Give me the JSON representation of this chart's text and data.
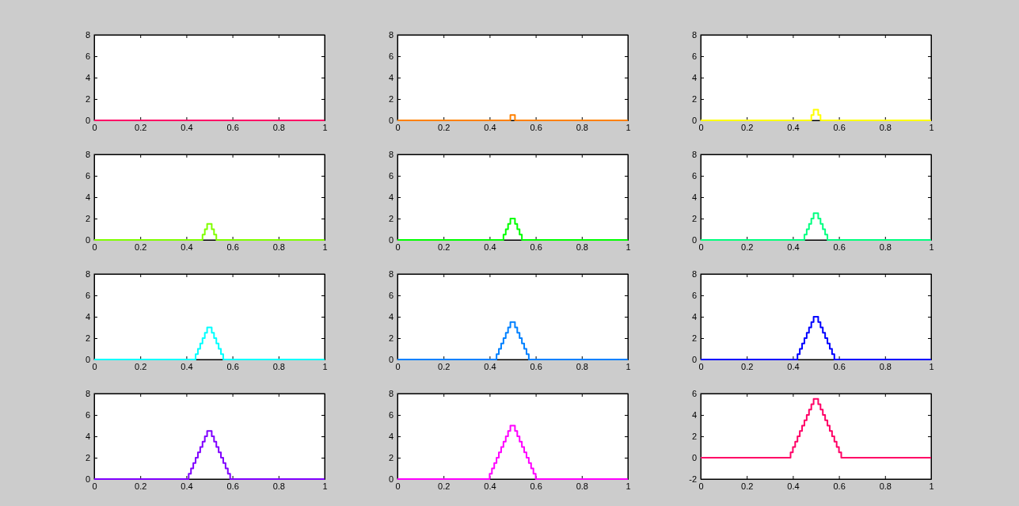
{
  "chart_data": [
    {
      "type": "step",
      "color": "#ff0066",
      "x": [
        0,
        1
      ],
      "values": [
        0,
        0
      ],
      "xlim": [
        0,
        1
      ],
      "ylim": [
        0,
        8
      ],
      "xticks": [
        0,
        0.2,
        0.4,
        0.6,
        0.8,
        1
      ],
      "yticks": [
        0,
        2,
        4,
        6,
        8
      ]
    },
    {
      "type": "step",
      "color": "#ff8000",
      "x": [
        0,
        0.49,
        0.51,
        1
      ],
      "values": [
        0,
        0.5,
        0,
        0
      ],
      "xlim": [
        0,
        1
      ],
      "ylim": [
        0,
        8
      ],
      "xticks": [
        0,
        0.2,
        0.4,
        0.6,
        0.8,
        1
      ],
      "yticks": [
        0,
        2,
        4,
        6,
        8
      ]
    },
    {
      "type": "step",
      "color": "#ffff00",
      "x": [
        0,
        0.48,
        0.49,
        0.51,
        0.52,
        1
      ],
      "values": [
        0,
        0.5,
        1,
        0.5,
        0,
        0
      ],
      "xlim": [
        0,
        1
      ],
      "ylim": [
        0,
        8
      ],
      "xticks": [
        0,
        0.2,
        0.4,
        0.6,
        0.8,
        1
      ],
      "yticks": [
        0,
        2,
        4,
        6,
        8
      ]
    },
    {
      "type": "step",
      "color": "#80ff00",
      "x": [
        0,
        0.47,
        0.48,
        0.49,
        0.51,
        0.52,
        0.53,
        1
      ],
      "values": [
        0,
        0.5,
        1,
        1.5,
        1,
        0.5,
        0,
        0
      ],
      "xlim": [
        0,
        1
      ],
      "ylim": [
        0,
        8
      ],
      "xticks": [
        0,
        0.2,
        0.4,
        0.6,
        0.8,
        1
      ],
      "yticks": [
        0,
        2,
        4,
        6,
        8
      ]
    },
    {
      "type": "step",
      "color": "#00ff00",
      "x": [
        0,
        0.46,
        0.47,
        0.48,
        0.49,
        0.51,
        0.52,
        0.53,
        0.54,
        1
      ],
      "values": [
        0,
        0.5,
        1,
        1.5,
        2,
        1.5,
        1,
        0.5,
        0,
        0
      ],
      "xlim": [
        0,
        1
      ],
      "ylim": [
        0,
        8
      ],
      "xticks": [
        0,
        0.2,
        0.4,
        0.6,
        0.8,
        1
      ],
      "yticks": [
        0,
        2,
        4,
        6,
        8
      ]
    },
    {
      "type": "step",
      "color": "#00ff80",
      "x": [
        0,
        0.45,
        0.46,
        0.47,
        0.48,
        0.49,
        0.51,
        0.52,
        0.53,
        0.54,
        0.55,
        1
      ],
      "values": [
        0,
        0.5,
        1,
        1.5,
        2,
        2.5,
        2,
        1.5,
        1,
        0.5,
        0,
        0
      ],
      "xlim": [
        0,
        1
      ],
      "ylim": [
        0,
        8
      ],
      "xticks": [
        0,
        0.2,
        0.4,
        0.6,
        0.8,
        1
      ],
      "yticks": [
        0,
        2,
        4,
        6,
        8
      ]
    },
    {
      "type": "step",
      "color": "#00ffff",
      "x": [
        0,
        0.44,
        0.45,
        0.46,
        0.47,
        0.48,
        0.49,
        0.51,
        0.52,
        0.53,
        0.54,
        0.55,
        0.56,
        1
      ],
      "values": [
        0,
        0.5,
        1,
        1.5,
        2,
        2.5,
        3,
        2.5,
        2,
        1.5,
        1,
        0.5,
        0,
        0
      ],
      "xlim": [
        0,
        1
      ],
      "ylim": [
        0,
        8
      ],
      "xticks": [
        0,
        0.2,
        0.4,
        0.6,
        0.8,
        1
      ],
      "yticks": [
        0,
        2,
        4,
        6,
        8
      ]
    },
    {
      "type": "step",
      "color": "#0080ff",
      "x": [
        0,
        0.43,
        0.44,
        0.45,
        0.46,
        0.47,
        0.48,
        0.49,
        0.51,
        0.52,
        0.53,
        0.54,
        0.55,
        0.56,
        0.57,
        1
      ],
      "values": [
        0,
        0.5,
        1,
        1.5,
        2,
        2.5,
        3,
        3.5,
        3,
        2.5,
        2,
        1.5,
        1,
        0.5,
        0,
        0
      ],
      "xlim": [
        0,
        1
      ],
      "ylim": [
        0,
        8
      ],
      "xticks": [
        0,
        0.2,
        0.4,
        0.6,
        0.8,
        1
      ],
      "yticks": [
        0,
        2,
        4,
        6,
        8
      ]
    },
    {
      "type": "step",
      "color": "#0000ff",
      "x": [
        0,
        0.42,
        0.43,
        0.44,
        0.45,
        0.46,
        0.47,
        0.48,
        0.49,
        0.51,
        0.52,
        0.53,
        0.54,
        0.55,
        0.56,
        0.57,
        0.58,
        1
      ],
      "values": [
        0,
        0.5,
        1,
        1.5,
        2,
        2.5,
        3,
        3.5,
        4,
        3.5,
        3,
        2.5,
        2,
        1.5,
        1,
        0.5,
        0,
        0
      ],
      "xlim": [
        0,
        1
      ],
      "ylim": [
        0,
        8
      ],
      "xticks": [
        0,
        0.2,
        0.4,
        0.6,
        0.8,
        1
      ],
      "yticks": [
        0,
        2,
        4,
        6,
        8
      ]
    },
    {
      "type": "step",
      "color": "#8000ff",
      "x": [
        0,
        0.41,
        0.42,
        0.43,
        0.44,
        0.45,
        0.46,
        0.47,
        0.48,
        0.49,
        0.51,
        0.52,
        0.53,
        0.54,
        0.55,
        0.56,
        0.57,
        0.58,
        0.59,
        1
      ],
      "values": [
        0,
        0.5,
        1,
        1.5,
        2,
        2.5,
        3,
        3.5,
        4,
        4.5,
        4,
        3.5,
        3,
        2.5,
        2,
        1.5,
        1,
        0.5,
        0,
        0
      ],
      "xlim": [
        0,
        1
      ],
      "ylim": [
        0,
        8
      ],
      "xticks": [
        0,
        0.2,
        0.4,
        0.6,
        0.8,
        1
      ],
      "yticks": [
        0,
        2,
        4,
        6,
        8
      ]
    },
    {
      "type": "step",
      "color": "#ff00ff",
      "x": [
        0,
        0.4,
        0.41,
        0.42,
        0.43,
        0.44,
        0.45,
        0.46,
        0.47,
        0.48,
        0.49,
        0.51,
        0.52,
        0.53,
        0.54,
        0.55,
        0.56,
        0.57,
        0.58,
        0.59,
        0.6,
        1
      ],
      "values": [
        0,
        0.5,
        1,
        1.5,
        2,
        2.5,
        3,
        3.5,
        4,
        4.5,
        5,
        4.5,
        4,
        3.5,
        3,
        2.5,
        2,
        1.5,
        1,
        0.5,
        0,
        0
      ],
      "xlim": [
        0,
        1
      ],
      "ylim": [
        0,
        8
      ],
      "xticks": [
        0,
        0.2,
        0.4,
        0.6,
        0.8,
        1
      ],
      "yticks": [
        0,
        2,
        4,
        6,
        8
      ]
    },
    {
      "type": "step",
      "color": "#ff0066",
      "x": [
        0,
        0.39,
        0.4,
        0.41,
        0.42,
        0.43,
        0.44,
        0.45,
        0.46,
        0.47,
        0.48,
        0.49,
        0.51,
        0.52,
        0.53,
        0.54,
        0.55,
        0.56,
        0.57,
        0.58,
        0.59,
        0.6,
        0.61,
        1
      ],
      "values": [
        0,
        0.5,
        1,
        1.5,
        2,
        2.5,
        3,
        3.5,
        4,
        4.5,
        5,
        5.5,
        5,
        4.5,
        4,
        3.5,
        3,
        2.5,
        2,
        1.5,
        1,
        0.5,
        0,
        0
      ],
      "xlim": [
        0,
        1
      ],
      "ylim": [
        -2,
        6
      ],
      "xticks": [
        0,
        0.2,
        0.4,
        0.6,
        0.8,
        1
      ],
      "yticks": [
        -2,
        0,
        2,
        4,
        6
      ]
    }
  ]
}
